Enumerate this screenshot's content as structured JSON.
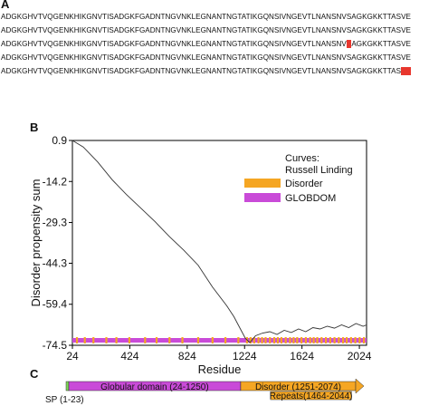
{
  "panel_labels": {
    "a": "A",
    "b": "B",
    "c": "C"
  },
  "sequences": [
    {
      "text": "ADGKGHVTVQGENKHIKGNVTISADGKFGADNTNGVNKLEGNANTNGTATIKGQNSIVNGEVTLNANSNVSAGKGKKTTASVE",
      "highlight": null
    },
    {
      "text": "ADGKGHVTVQGENKHIKGNVTISADGKFGADNTNGVNKLEGNANTNGTATIKGQNSIVNGEVTLNANSNVSAGKGKKTTASVE",
      "highlight": null
    },
    {
      "text": "ADGKGHVTVQGENKHIKGNVTISADGKFGADNTNGVNKLEGNANTNGTATIKGQNSIVNGEVTLNANSNV",
      "highlight": "S",
      "rest": "AGKGKKTTASVE"
    },
    {
      "text": "ADGKGHVTVQGENKHIKGNVTISADGKFGADNTNGVNKLEGNANTNGTATIKGQNSIVNGEVTLNANSNVSAGKGKKTTASVE",
      "highlight": null
    },
    {
      "text": "ADGKGHVTVQGENKHIKGNVTISADGKFGADNTNGVNKLEGNANTNGTATIKGQNSIVNGEVTLNANSNVSAGKGKKTTAS",
      "highlight": "VE",
      "rest": ""
    }
  ],
  "chart_data": {
    "type": "line",
    "xlabel": "Residue",
    "ylabel": "Disorder propensity sum",
    "xlim": [
      24,
      2074
    ],
    "ylim": [
      -74.5,
      0.9
    ],
    "x_ticks": [
      24,
      424,
      824,
      1224,
      1624,
      2024
    ],
    "y_ticks": [
      0.9,
      -14.2,
      -29.3,
      -44.3,
      -59.4,
      -74.5
    ],
    "x_tick_labels": [
      "24",
      "424",
      "824",
      "1224",
      "1624",
      "2024"
    ],
    "y_tick_labels": [
      "0.9",
      "-14.2",
      "-29.3",
      "-44.3",
      "-59.4",
      "-74.5"
    ],
    "legend_title": "Curves: Russell Linding",
    "legend_title_lines": [
      "Curves:",
      "Russell Linding"
    ],
    "legend_position": "top-right",
    "legend": [
      {
        "name": "Disorder",
        "color": "#f5a623"
      },
      {
        "name": "GLOBDOM",
        "color": "#c94bd8"
      }
    ],
    "series": [
      {
        "name": "",
        "color": "#333333",
        "x": [
          24,
          100,
          200,
          300,
          400,
          500,
          600,
          700,
          800,
          900,
          1000,
          1100,
          1150,
          1200,
          1230,
          1260,
          1300,
          1350,
          1400,
          1450,
          1500,
          1550,
          1600,
          1650,
          1700,
          1750,
          1800,
          1850,
          1900,
          1950,
          2000,
          2050,
          2074
        ],
        "y": [
          0.9,
          -1.5,
          -7.0,
          -13.5,
          -19.0,
          -24.0,
          -29.0,
          -34.5,
          -39.5,
          -45.0,
          -53.0,
          -60.0,
          -64.0,
          -69.0,
          -72.0,
          -73.5,
          -71.0,
          -70.0,
          -69.5,
          -70.5,
          -69.0,
          -69.8,
          -68.5,
          -69.5,
          -68.0,
          -68.5,
          -67.5,
          -68.2,
          -67.0,
          -68.0,
          -66.5,
          -67.5,
          -67.0
        ]
      }
    ],
    "globdom_bar": {
      "from": 24,
      "to": 2074,
      "color": "#c94bd8"
    },
    "disorder_ticks": [
      55,
      110,
      170,
      260,
      330,
      420,
      530,
      610,
      700,
      790,
      900,
      1000,
      1090,
      1180,
      1240,
      1265,
      1290,
      1320,
      1345,
      1370,
      1400,
      1430,
      1455,
      1480,
      1510,
      1540,
      1565,
      1590,
      1620,
      1650,
      1680,
      1705,
      1730,
      1760,
      1790,
      1820,
      1850,
      1880,
      1910,
      1935,
      1965,
      1995,
      2025,
      2055
    ]
  },
  "domain_map": {
    "sp": {
      "label": "SP (1-23)",
      "color": "#7ed957"
    },
    "globular": {
      "label": "Globular domain (24-1250)",
      "color": "#c94bd8"
    },
    "disorder": {
      "label": "Disorder (1251-2074)",
      "color": "#f5a623"
    },
    "repeats": {
      "label": "Repeats(1464-2044)",
      "color": "#f5a623"
    }
  }
}
